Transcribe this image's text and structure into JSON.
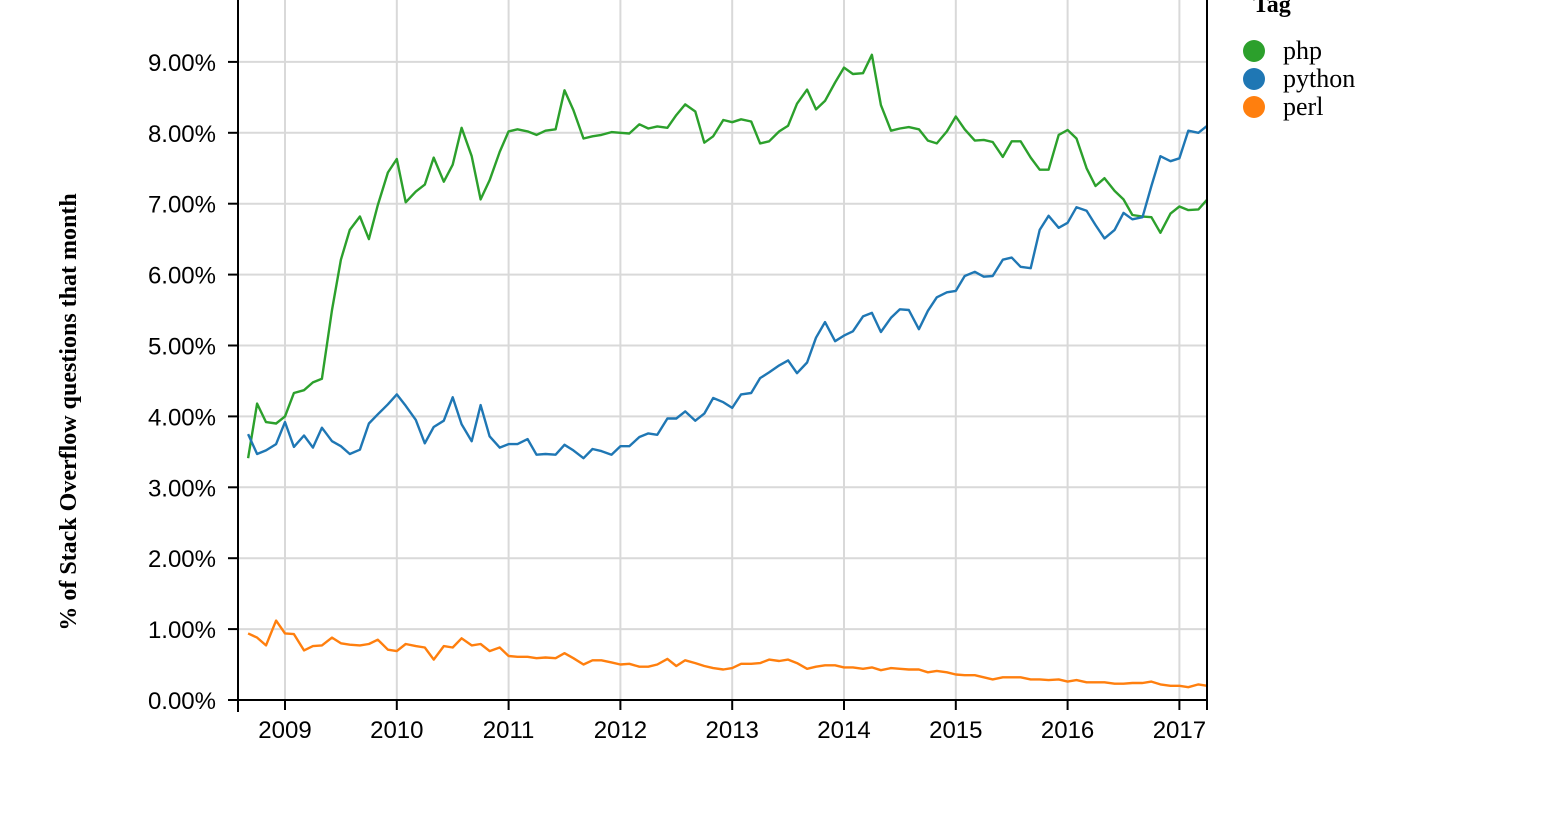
{
  "chart_data": {
    "type": "line",
    "title": "",
    "xlabel": "",
    "ylabel": "% of Stack Overflow questions that month",
    "xlim": [
      2008.58,
      2017.25
    ],
    "ylim": [
      0,
      9.9
    ],
    "x_ticks": [
      2009,
      2010,
      2011,
      2012,
      2013,
      2014,
      2015,
      2016,
      2017
    ],
    "y_ticks": [
      0,
      1,
      2,
      3,
      4,
      5,
      6,
      7,
      8,
      9
    ],
    "y_tick_labels": [
      "0.00%",
      "1.00%",
      "2.00%",
      "3.00%",
      "4.00%",
      "5.00%",
      "6.00%",
      "7.00%",
      "8.00%",
      "9.00%"
    ],
    "grid": true,
    "legend": {
      "title": "Tag",
      "position": "right"
    },
    "x": [
      2008.67,
      2008.75,
      2008.83,
      2008.92,
      2009.0,
      2009.08,
      2009.17,
      2009.25,
      2009.33,
      2009.42,
      2009.5,
      2009.58,
      2009.67,
      2009.75,
      2009.83,
      2009.92,
      2010.0,
      2010.08,
      2010.17,
      2010.25,
      2010.33,
      2010.42,
      2010.5,
      2010.58,
      2010.67,
      2010.75,
      2010.83,
      2010.92,
      2011.0,
      2011.08,
      2011.17,
      2011.25,
      2011.33,
      2011.42,
      2011.5,
      2011.58,
      2011.67,
      2011.75,
      2011.83,
      2011.92,
      2012.0,
      2012.08,
      2012.17,
      2012.25,
      2012.33,
      2012.42,
      2012.5,
      2012.58,
      2012.67,
      2012.75,
      2012.83,
      2012.92,
      2013.0,
      2013.08,
      2013.17,
      2013.25,
      2013.33,
      2013.42,
      2013.5,
      2013.58,
      2013.67,
      2013.75,
      2013.83,
      2013.92,
      2014.0,
      2014.08,
      2014.17,
      2014.25,
      2014.33,
      2014.42,
      2014.5,
      2014.58,
      2014.67,
      2014.75,
      2014.83,
      2014.92,
      2015.0,
      2015.08,
      2015.17,
      2015.25,
      2015.33,
      2015.42,
      2015.5,
      2015.58,
      2015.67,
      2015.75,
      2015.83,
      2015.92,
      2016.0,
      2016.08,
      2016.17,
      2016.25,
      2016.33,
      2016.42,
      2016.5,
      2016.58,
      2016.67,
      2016.75,
      2016.83,
      2016.92,
      2017.0,
      2017.08,
      2017.17,
      2017.25
    ],
    "series": [
      {
        "name": "php",
        "color": "#2ca02c",
        "values": [
          3.41,
          4.18,
          3.92,
          3.9,
          4.0,
          4.33,
          4.37,
          4.48,
          4.53,
          5.5,
          6.21,
          6.63,
          6.82,
          6.5,
          6.98,
          7.44,
          7.63,
          7.02,
          7.17,
          7.27,
          7.65,
          7.31,
          7.55,
          8.07,
          7.67,
          7.06,
          7.33,
          7.73,
          8.02,
          8.05,
          8.02,
          7.97,
          8.03,
          8.05,
          8.6,
          8.32,
          7.92,
          7.95,
          7.97,
          8.01,
          8.0,
          7.99,
          8.12,
          8.06,
          8.09,
          8.07,
          8.25,
          8.4,
          8.3,
          7.86,
          7.95,
          8.18,
          8.15,
          8.19,
          8.16,
          7.85,
          7.88,
          8.02,
          8.1,
          8.41,
          8.61,
          8.33,
          8.45,
          8.71,
          8.92,
          8.83,
          8.84,
          9.1,
          8.39,
          8.03,
          8.06,
          8.08,
          8.05,
          7.89,
          7.85,
          8.02,
          8.23,
          8.05,
          7.89,
          7.9,
          7.87,
          7.66,
          7.88,
          7.88,
          7.65,
          7.48,
          7.48,
          7.97,
          8.04,
          7.92,
          7.5,
          7.25,
          7.36,
          7.18,
          7.06,
          6.84,
          6.82,
          6.81,
          6.59,
          6.86,
          6.96,
          6.91,
          6.92,
          7.06
        ]
      },
      {
        "name": "python",
        "color": "#1f77b4",
        "values": [
          3.75,
          3.47,
          3.52,
          3.61,
          3.92,
          3.57,
          3.73,
          3.56,
          3.84,
          3.65,
          3.58,
          3.47,
          3.53,
          3.9,
          4.03,
          4.17,
          4.31,
          4.15,
          3.95,
          3.62,
          3.85,
          3.94,
          4.27,
          3.89,
          3.65,
          4.16,
          3.72,
          3.56,
          3.61,
          3.61,
          3.68,
          3.46,
          3.47,
          3.46,
          3.6,
          3.52,
          3.41,
          3.54,
          3.51,
          3.46,
          3.58,
          3.58,
          3.71,
          3.76,
          3.74,
          3.97,
          3.97,
          4.07,
          3.94,
          4.04,
          4.26,
          4.2,
          4.12,
          4.31,
          4.33,
          4.54,
          4.62,
          4.72,
          4.79,
          4.61,
          4.76,
          5.11,
          5.33,
          5.06,
          5.14,
          5.2,
          5.41,
          5.46,
          5.19,
          5.39,
          5.51,
          5.5,
          5.23,
          5.49,
          5.68,
          5.75,
          5.77,
          5.98,
          6.04,
          5.97,
          5.98,
          6.21,
          6.24,
          6.11,
          6.09,
          6.63,
          6.83,
          6.66,
          6.73,
          6.95,
          6.9,
          6.7,
          6.51,
          6.63,
          6.87,
          6.78,
          6.81,
          7.25,
          7.67,
          7.6,
          7.64,
          8.03,
          8.0,
          8.1
        ]
      },
      {
        "name": "perl",
        "color": "#ff7f0e",
        "values": [
          0.94,
          0.88,
          0.77,
          1.12,
          0.94,
          0.93,
          0.7,
          0.76,
          0.77,
          0.88,
          0.8,
          0.78,
          0.77,
          0.79,
          0.85,
          0.71,
          0.69,
          0.79,
          0.76,
          0.74,
          0.57,
          0.76,
          0.74,
          0.87,
          0.77,
          0.79,
          0.69,
          0.74,
          0.62,
          0.61,
          0.61,
          0.59,
          0.6,
          0.59,
          0.66,
          0.59,
          0.5,
          0.56,
          0.56,
          0.53,
          0.5,
          0.51,
          0.47,
          0.47,
          0.5,
          0.58,
          0.48,
          0.56,
          0.52,
          0.48,
          0.45,
          0.43,
          0.45,
          0.51,
          0.51,
          0.52,
          0.57,
          0.55,
          0.57,
          0.52,
          0.44,
          0.47,
          0.49,
          0.49,
          0.46,
          0.46,
          0.44,
          0.46,
          0.42,
          0.45,
          0.44,
          0.43,
          0.43,
          0.39,
          0.41,
          0.39,
          0.36,
          0.35,
          0.35,
          0.32,
          0.29,
          0.32,
          0.32,
          0.32,
          0.29,
          0.29,
          0.28,
          0.29,
          0.26,
          0.28,
          0.25,
          0.25,
          0.25,
          0.23,
          0.23,
          0.24,
          0.24,
          0.26,
          0.22,
          0.2,
          0.2,
          0.18,
          0.22,
          0.2
        ]
      }
    ]
  }
}
